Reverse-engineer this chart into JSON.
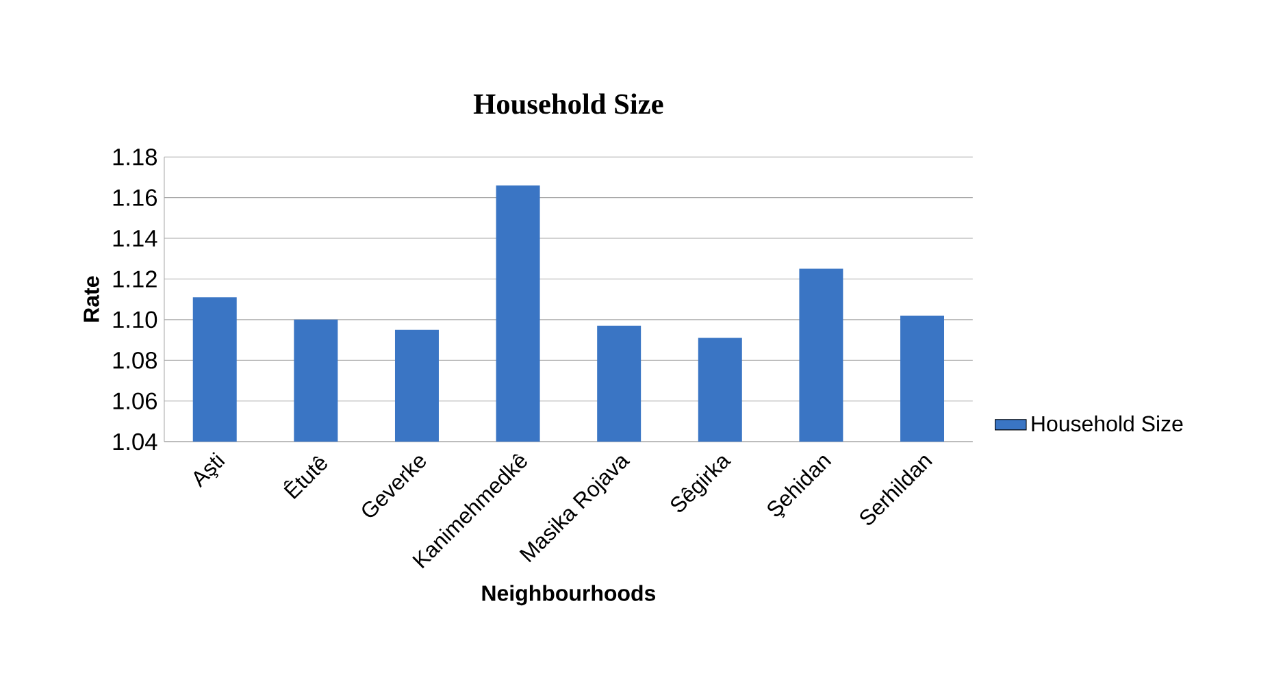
{
  "chart_data": {
    "type": "bar",
    "title": "Household Size",
    "xlabel": "Neighbourhoods",
    "ylabel": "Rate",
    "categories": [
      "Aşti",
      "Êtutê",
      "Geverke",
      "Kanimehmedkê",
      "Masika Rojava",
      "Sêgirka",
      "Şehidan",
      "Serhildan"
    ],
    "series": [
      {
        "name": "Household Size",
        "color": "#3a75c4",
        "values": [
          1.111,
          1.1,
          1.095,
          1.166,
          1.097,
          1.091,
          1.125,
          1.102
        ]
      }
    ],
    "ylim": [
      1.04,
      1.18
    ],
    "yticks": [
      {
        "value": 1.04,
        "label": "1.04"
      },
      {
        "value": 1.06,
        "label": "1.06"
      },
      {
        "value": 1.08,
        "label": "1.08"
      },
      {
        "value": 1.1,
        "label": "1.10"
      },
      {
        "value": 1.12,
        "label": "1.12"
      },
      {
        "value": 1.14,
        "label": "1.14"
      },
      {
        "value": 1.16,
        "label": "1.16"
      },
      {
        "value": 1.18,
        "label": "1.18"
      }
    ],
    "grid": "y",
    "legend": "right"
  }
}
